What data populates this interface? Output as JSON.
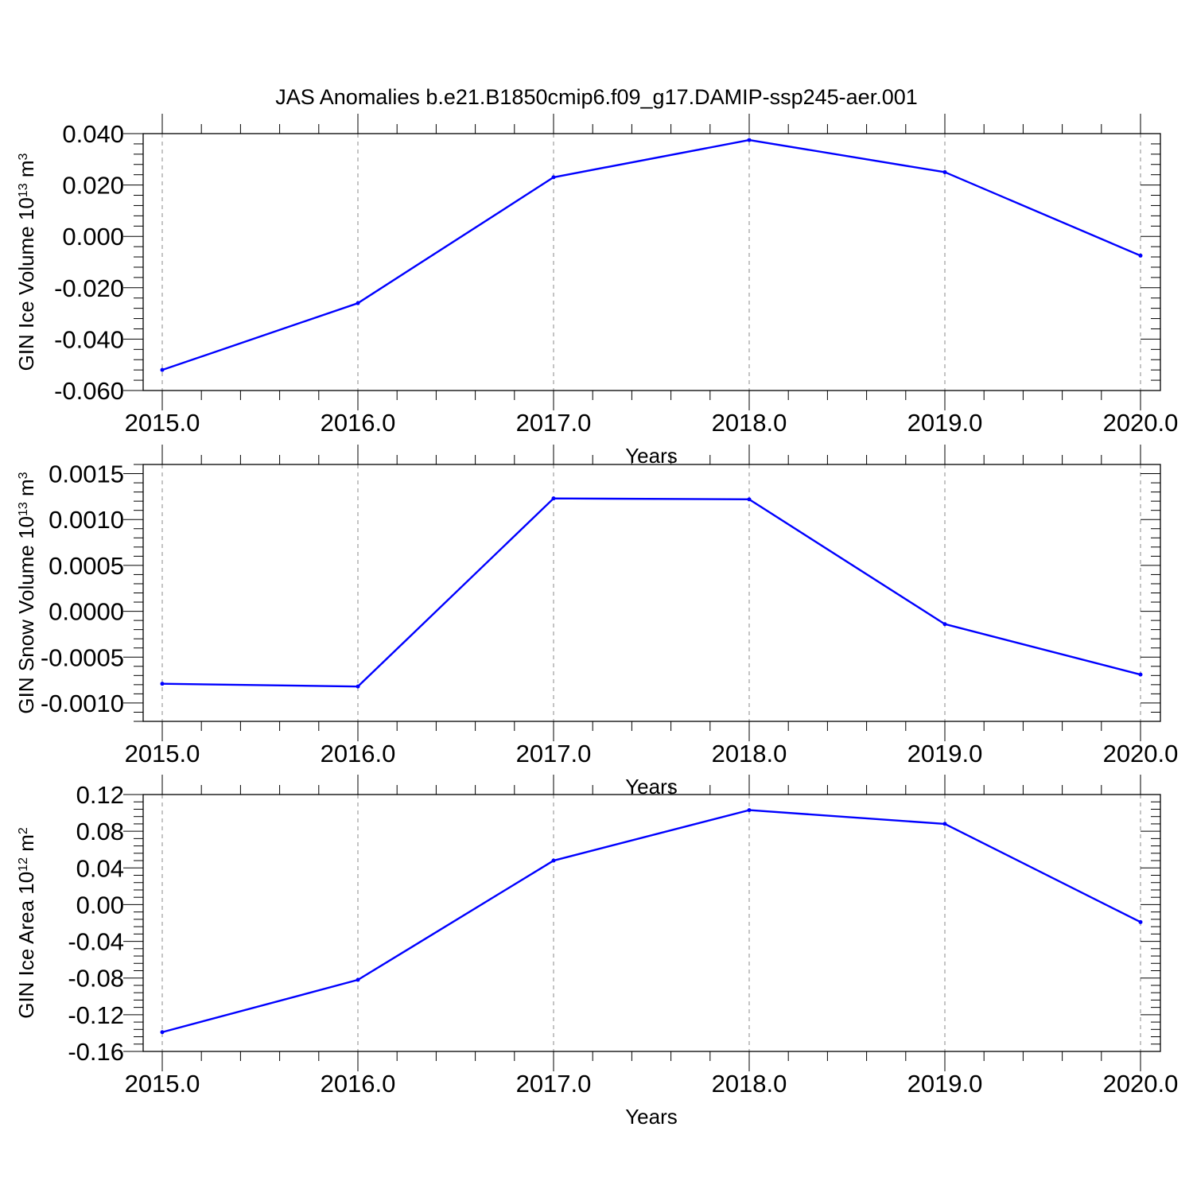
{
  "title": "JAS Anomalies b.e21.B1850cmip6.f09_g17.DAMIP-ssp245-aer.001",
  "colors": {
    "line": "#0000ff",
    "axis": "#000000",
    "grid": "#888888"
  },
  "chart_data": [
    {
      "type": "line",
      "ylabel": {
        "text": "GIN Ice Volume 10",
        "sup": "13",
        "unit": " m",
        "unit_sup": "3"
      },
      "xlabel": "Years",
      "x": [
        2015,
        2016,
        2017,
        2018,
        2019,
        2020
      ],
      "series": [
        {
          "values": [
            -0.052,
            -0.026,
            0.023,
            0.0375,
            0.025,
            -0.0075
          ]
        }
      ],
      "xlim": [
        2015,
        2020
      ],
      "ylim": [
        -0.06,
        0.04
      ],
      "yticks": [
        -0.06,
        -0.04,
        -0.02,
        0.0,
        0.02,
        0.04
      ],
      "ytick_labels": [
        "-0.060",
        "-0.040",
        "-0.020",
        "0.000",
        "0.020",
        "0.040"
      ],
      "xtick_labels": [
        "2015.0",
        "2016.0",
        "2017.0",
        "2018.0",
        "2019.0",
        "2020.0"
      ],
      "grid": "vertical dashed"
    },
    {
      "type": "line",
      "ylabel": {
        "text": "GIN Snow Volume 10",
        "sup": "13",
        "unit": " m",
        "unit_sup": "3"
      },
      "xlabel": "Years",
      "x": [
        2015,
        2016,
        2017,
        2018,
        2019,
        2020
      ],
      "series": [
        {
          "values": [
            -0.00079,
            -0.00082,
            0.00123,
            0.00122,
            -0.00014,
            -0.00069
          ]
        }
      ],
      "xlim": [
        2015,
        2020
      ],
      "ylim": [
        -0.0012,
        0.0016
      ],
      "yticks": [
        -0.001,
        -0.0005,
        0.0,
        0.0005,
        0.001,
        0.0015
      ],
      "ytick_labels": [
        "-0.0010",
        "-0.0005",
        "0.0000",
        "0.0005",
        "0.0010",
        "0.0015"
      ],
      "xtick_labels": [
        "2015.0",
        "2016.0",
        "2017.0",
        "2018.0",
        "2019.0",
        "2020.0"
      ],
      "grid": "vertical dashed"
    },
    {
      "type": "line",
      "ylabel": {
        "text": "GIN Ice Area 10",
        "sup": "12",
        "unit": " m",
        "unit_sup": "2"
      },
      "xlabel": "Years",
      "x": [
        2015,
        2016,
        2017,
        2018,
        2019,
        2020
      ],
      "series": [
        {
          "values": [
            -0.139,
            -0.082,
            0.048,
            0.103,
            0.088,
            -0.019
          ]
        }
      ],
      "xlim": [
        2015,
        2020
      ],
      "ylim": [
        -0.16,
        0.12
      ],
      "yticks": [
        -0.16,
        -0.12,
        -0.08,
        -0.04,
        0.0,
        0.04,
        0.08,
        0.12
      ],
      "ytick_labels": [
        "-0.16",
        "-0.12",
        "-0.08",
        "-0.04",
        "0.00",
        "0.04",
        "0.08",
        "0.12"
      ],
      "xtick_labels": [
        "2015.0",
        "2016.0",
        "2017.0",
        "2018.0",
        "2019.0",
        "2020.0"
      ],
      "grid": "vertical dashed"
    }
  ]
}
